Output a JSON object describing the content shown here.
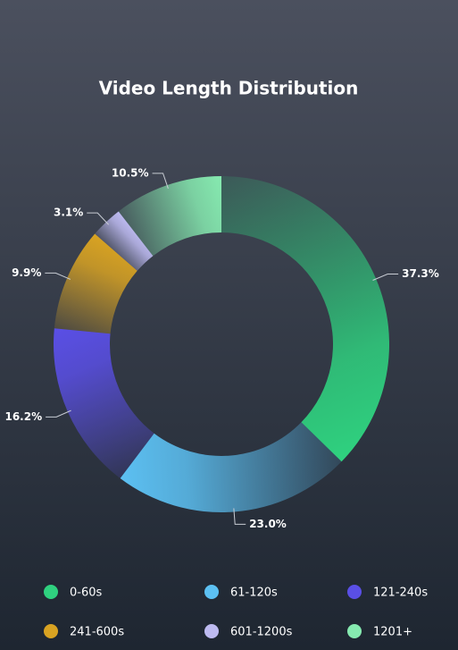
{
  "chart_data": {
    "type": "donut",
    "title": "Video Length Distribution",
    "categories": [
      "0-60s",
      "61-120s",
      "121-240s",
      "241-600s",
      "601-1200s",
      "1201+"
    ],
    "values": [
      37.3,
      23.0,
      16.2,
      9.9,
      3.1,
      10.5
    ],
    "value_labels": [
      "37.3%",
      "23.0%",
      "16.2%",
      "9.9%",
      "3.1%",
      "10.5%"
    ],
    "colors": [
      "#2fd17f",
      "#5cc0f2",
      "#5a4fe6",
      "#d9a322",
      "#bdbaf0",
      "#86eab0"
    ]
  }
}
